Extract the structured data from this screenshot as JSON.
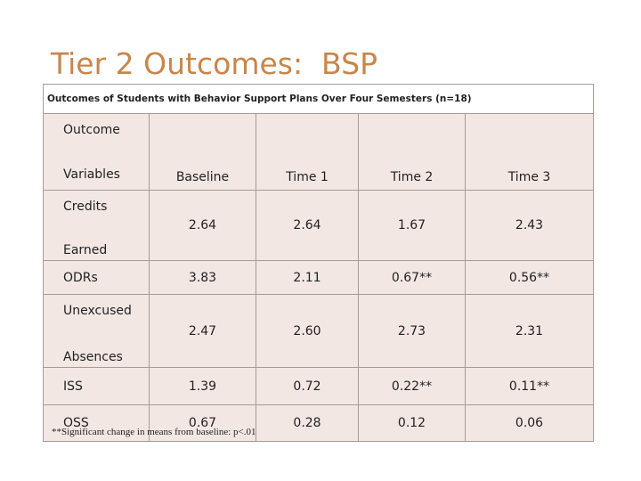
{
  "title": "Tier 2 Outcomes:  BSP",
  "table": {
    "caption": "Outcomes of Students with Behavior Support Plans Over Four Semesters (n=18)",
    "header": [
      [
        "Outcome",
        "Variables"
      ],
      "Baseline",
      "Time 1",
      "Time 2",
      "Time 3"
    ],
    "rows": [
      [
        [
          "Credits",
          "Earned"
        ],
        "2.64",
        "2.64",
        "1.67",
        "2.43"
      ],
      [
        "ODRs",
        "3.83",
        "2.11",
        "0.67**",
        "0.56**"
      ],
      [
        [
          "Unexcused",
          "Absences"
        ],
        "2.47",
        "2.60",
        "2.73",
        "2.31"
      ],
      [
        "ISS",
        "1.39",
        "0.72",
        "0.22**",
        "0.11**"
      ],
      [
        "OSS",
        "0.67",
        "0.28",
        "0.12",
        "0.06"
      ]
    ],
    "footnote": "**Significant change in means from baseline: p<.01"
  }
}
